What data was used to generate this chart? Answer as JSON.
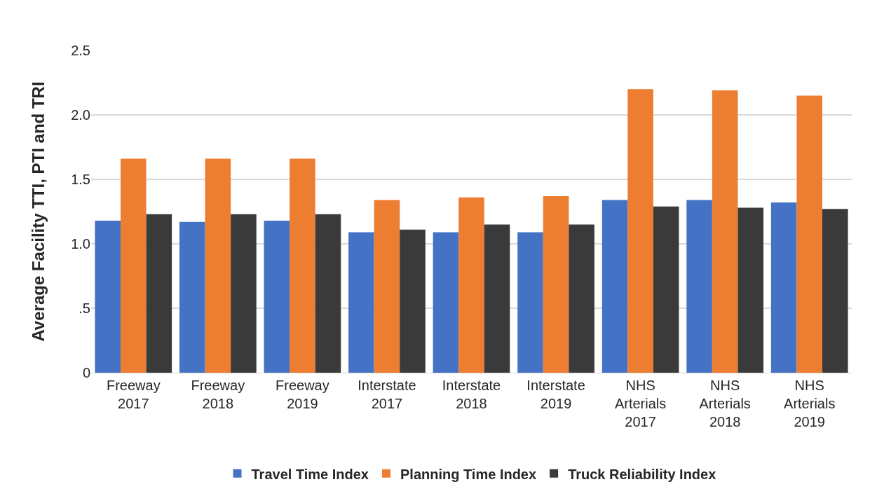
{
  "chart_data": {
    "type": "bar",
    "ylabel": "Average Facility TTI, PTI and TRI",
    "categories": [
      "Freeway 2017",
      "Freeway 2018",
      "Freeway 2019",
      "Interstate 2017",
      "Interstate 2018",
      "Interstate 2019",
      "NHS Arterials 2017",
      "NHS Arterials 2018",
      "NHS Arterials 2019"
    ],
    "series": [
      {
        "name": "Travel Time Index",
        "color": "#4472c4",
        "values": [
          1.18,
          1.17,
          1.18,
          1.09,
          1.09,
          1.09,
          1.34,
          1.34,
          1.32
        ]
      },
      {
        "name": "Planning Time Index",
        "color": "#ed7d31",
        "values": [
          1.66,
          1.66,
          1.66,
          1.34,
          1.36,
          1.37,
          2.2,
          2.19,
          2.15
        ]
      },
      {
        "name": "Truck Reliability Index",
        "color": "#3a3a3a",
        "values": [
          1.23,
          1.23,
          1.23,
          1.11,
          1.15,
          1.15,
          1.29,
          1.28,
          1.27
        ]
      }
    ],
    "ylim": [
      0,
      2.5
    ],
    "yticks": [
      0,
      {
        "value": 0.5,
        "label": ".5"
      },
      {
        "value": 1,
        "label": "1.0"
      },
      {
        "value": 1.5,
        "label": "1.5"
      },
      {
        "value": 2,
        "label": "2.0"
      },
      {
        "value": 2.5,
        "label": "2.5"
      }
    ],
    "grid": "y",
    "legend": "bottom"
  }
}
